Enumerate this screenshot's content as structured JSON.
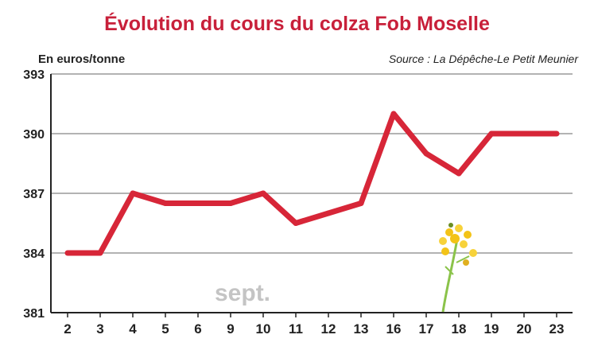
{
  "chart_data": {
    "type": "line",
    "title": "Évolution du cours du colza Fob Moselle",
    "ylabel": "En euros/tonne",
    "source": "Source : La Dépêche-Le Petit Meunier",
    "annotation": "sept.",
    "categories": [
      "2",
      "3",
      "4",
      "5",
      "6",
      "9",
      "10",
      "11",
      "12",
      "13",
      "16",
      "17",
      "18",
      "19",
      "20",
      "23"
    ],
    "values": [
      384,
      384,
      387,
      386.5,
      386.5,
      386.5,
      387,
      385.5,
      386,
      386.5,
      391,
      389,
      388,
      390,
      390,
      390
    ],
    "yticks": [
      381,
      384,
      387,
      390,
      393
    ],
    "ylim": [
      381,
      393
    ],
    "grid": true,
    "colors": {
      "line": "#d72638",
      "title": "#c8203a",
      "grid": "#9a9a9a",
      "axis": "#222222",
      "annotation": "#c4c4c4"
    }
  }
}
